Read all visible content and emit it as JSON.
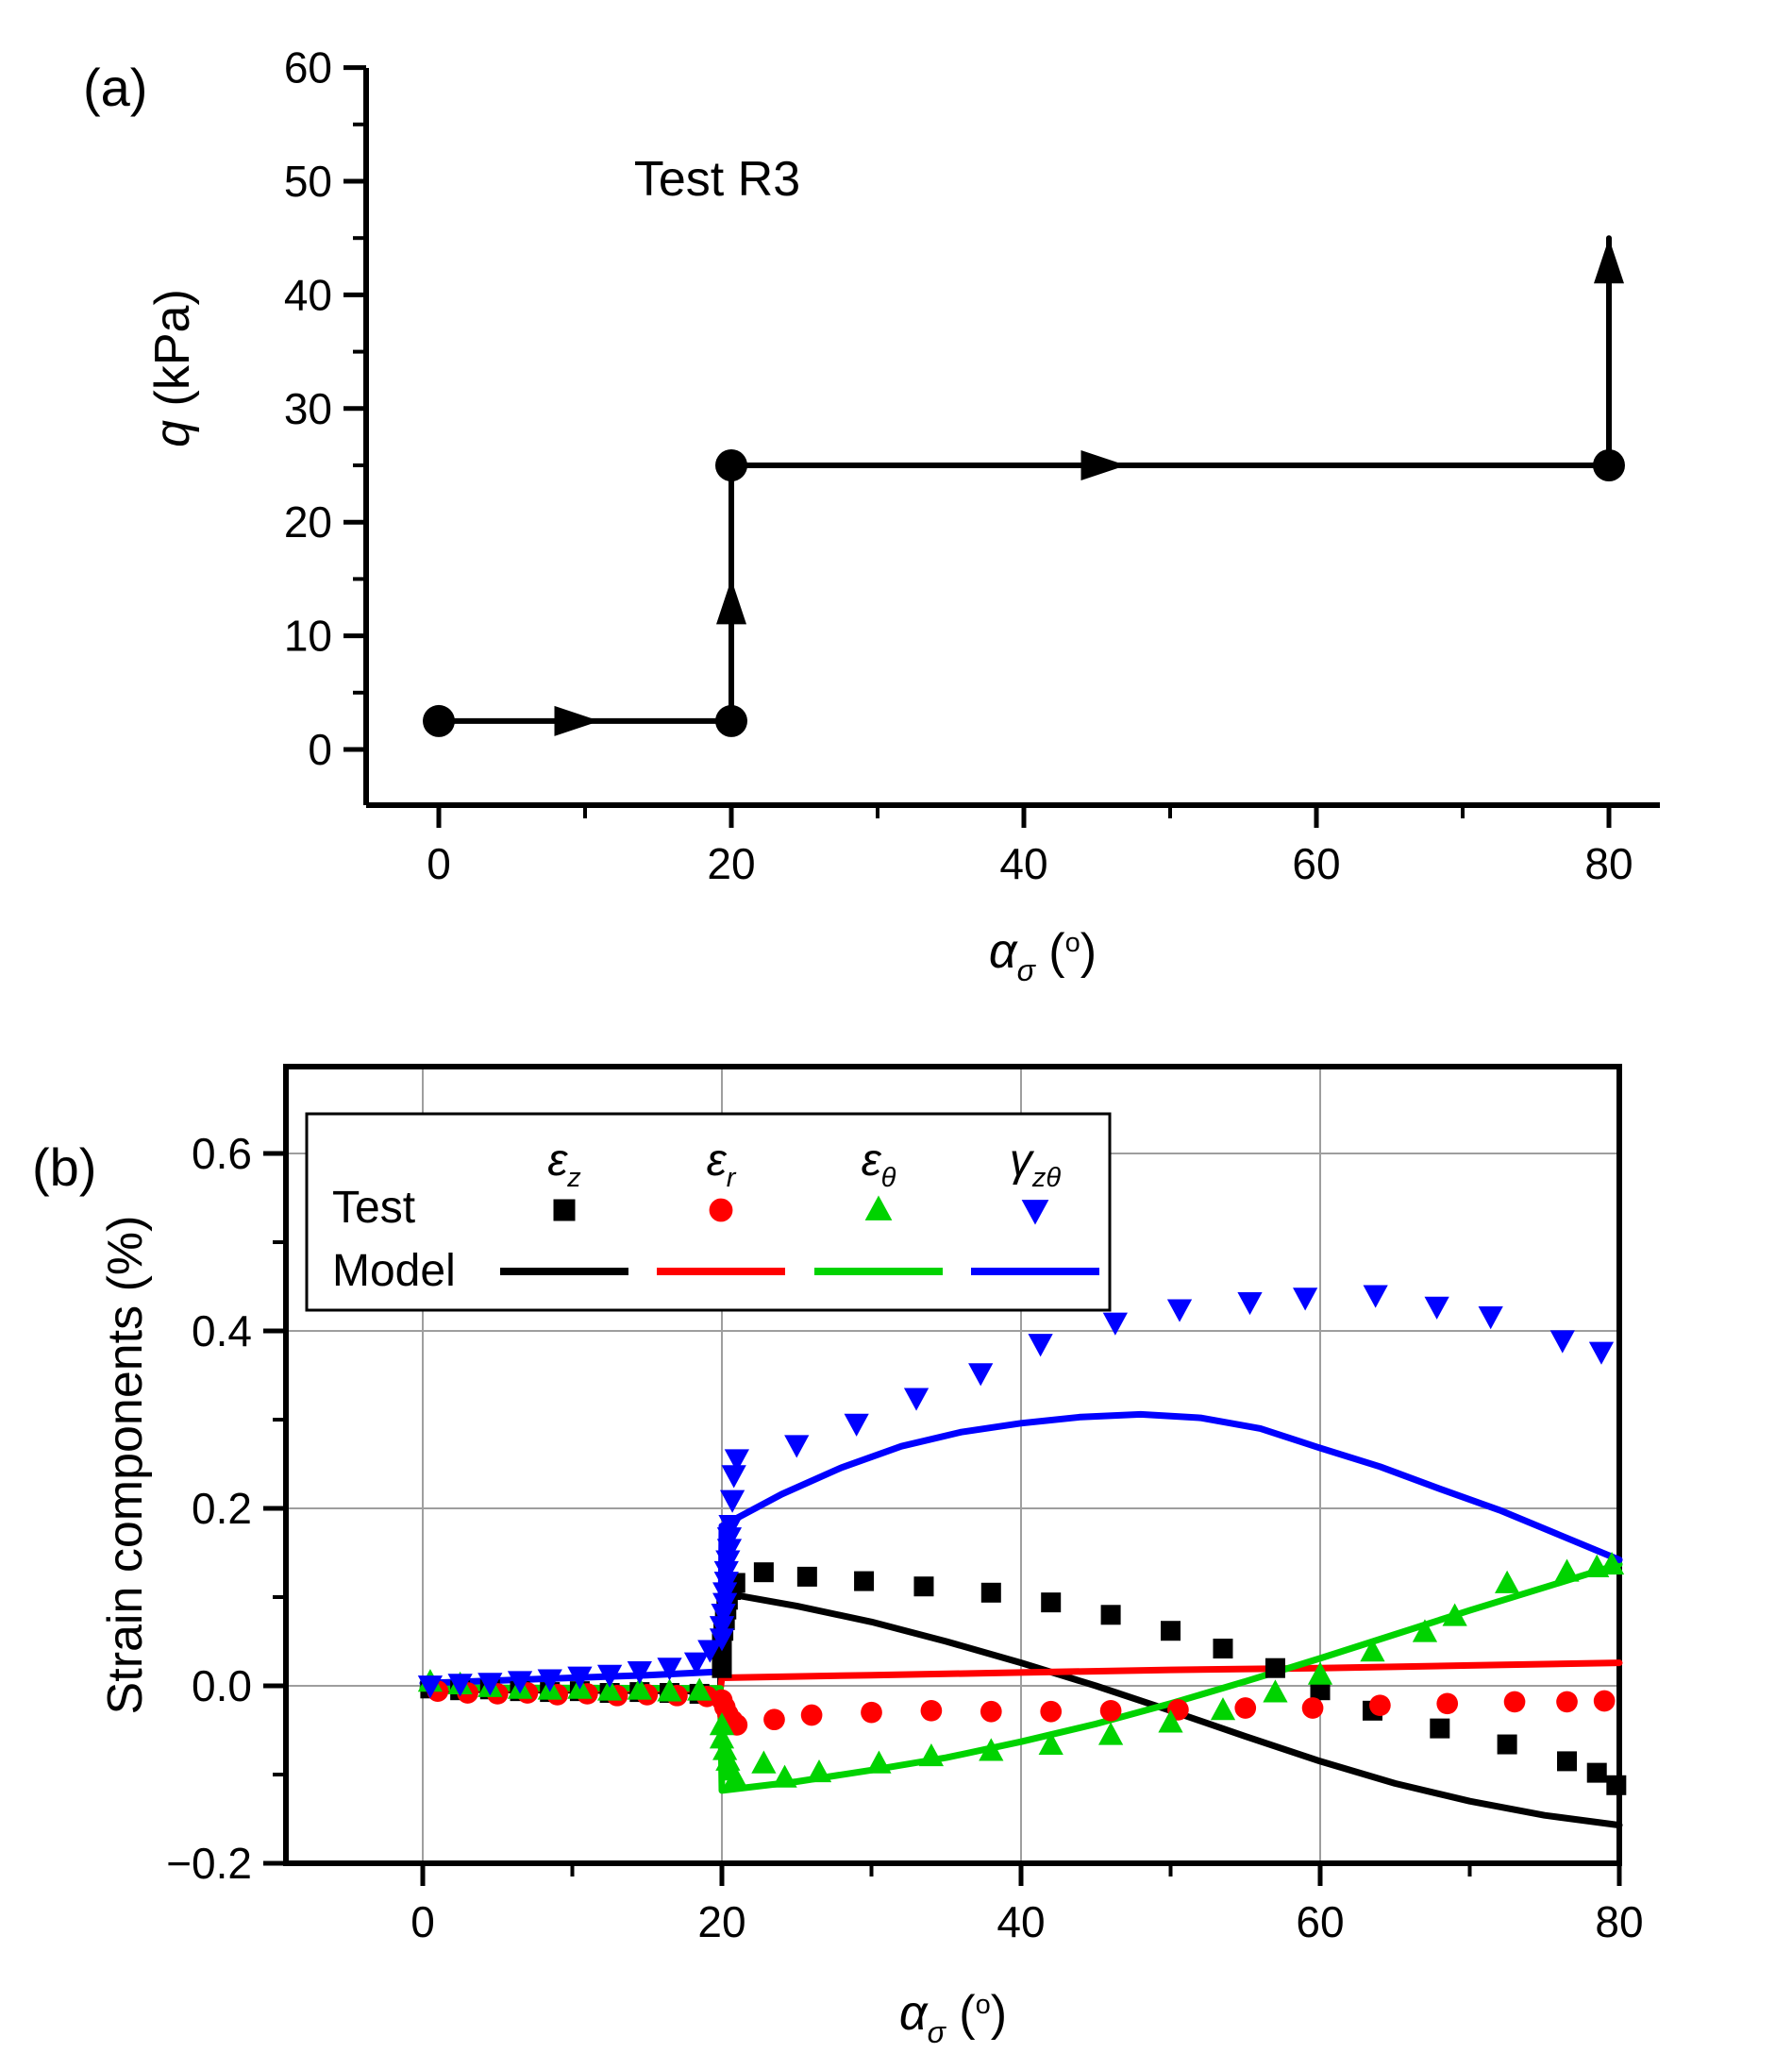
{
  "figure_bg": "#ffffff",
  "axis_color": "#000000",
  "grid_color": "#9e9e9e",
  "chart_data": [
    {
      "panel": "a",
      "panel_label": "(a)",
      "type": "line",
      "title": "Test R3",
      "xlabel": {
        "text": "α_σ (°)",
        "base": "α",
        "sub": "σ",
        "deg": true
      },
      "ylabel": {
        "text": "q (kPa)",
        "italic": "q",
        "rest": " (kPa)"
      },
      "xlim": [
        -5,
        83.5
      ],
      "ylim": [
        -4.9,
        60
      ],
      "xticks": [
        0,
        20,
        40,
        60,
        80
      ],
      "xminor": [
        10,
        30,
        50,
        70
      ],
      "yticks": [
        0,
        10,
        20,
        30,
        40,
        50,
        60
      ],
      "yminor": [
        5,
        15,
        25,
        35,
        45,
        55
      ],
      "grid": false,
      "color": "#000000",
      "stress_path": {
        "vertices": [
          [
            0,
            2.5
          ],
          [
            20,
            2.5
          ],
          [
            20,
            25
          ],
          [
            80,
            25
          ],
          [
            80,
            45
          ]
        ],
        "points": [
          [
            0,
            2.5
          ],
          [
            20,
            2.5
          ],
          [
            20,
            25
          ],
          [
            80,
            25
          ]
        ],
        "arrows": [
          {
            "tip": [
              11,
              2.5
            ],
            "dir": "right"
          },
          {
            "tip": [
              20,
              15
            ],
            "dir": "up"
          },
          {
            "tip": [
              47,
              25
            ],
            "dir": "right"
          },
          {
            "tip": [
              80,
              45
            ],
            "dir": "up"
          }
        ]
      }
    },
    {
      "panel": "b",
      "panel_label": "(b)",
      "type": "scatter-line",
      "xlabel": {
        "text": "α_σ (°)",
        "base": "α",
        "sub": "σ",
        "deg": true
      },
      "ylabel": {
        "text": "Strain components (%)"
      },
      "xlim": [
        -9.2,
        80
      ],
      "ylim": [
        -0.2,
        0.698
      ],
      "xticks": [
        0,
        20,
        40,
        60,
        80
      ],
      "xminor": [
        10,
        30,
        50,
        70
      ],
      "yticks": [
        -0.2,
        0,
        0.2,
        0.4,
        0.6
      ],
      "ytick_labels": [
        "-0.2",
        "0.0",
        "0.2",
        "0.4",
        "0.6"
      ],
      "yminor": [
        -0.1,
        0.1,
        0.3,
        0.5
      ],
      "grid": true,
      "legend": {
        "row_labels": [
          "Test",
          "Model"
        ]
      },
      "series": [
        {
          "key": "eps-z",
          "name": {
            "text": "ε_z",
            "base": "ε",
            "sub": "z"
          },
          "color": "#000000",
          "marker": "square",
          "test": [
            [
              0.5,
              -0.003
            ],
            [
              2.5,
              -0.005
            ],
            [
              4.5,
              -0.004
            ],
            [
              6.5,
              -0.006
            ],
            [
              8.5,
              -0.007
            ],
            [
              10.5,
              -0.006
            ],
            [
              12.5,
              -0.008
            ],
            [
              14.5,
              -0.007
            ],
            [
              16.5,
              -0.008
            ],
            [
              18.5,
              -0.009
            ],
            [
              20,
              0.02
            ],
            [
              20,
              0.034
            ],
            [
              20,
              0.048
            ],
            [
              20.1,
              0.062
            ],
            [
              20.2,
              0.074
            ],
            [
              20.3,
              0.086
            ],
            [
              20.4,
              0.097
            ],
            [
              20.6,
              0.108
            ],
            [
              20.9,
              0.116
            ],
            [
              22.8,
              0.128
            ],
            [
              25.7,
              0.123
            ],
            [
              29.5,
              0.118
            ],
            [
              33.5,
              0.112
            ],
            [
              38,
              0.105
            ],
            [
              42,
              0.094
            ],
            [
              46,
              0.08
            ],
            [
              50,
              0.062
            ],
            [
              53.5,
              0.042
            ],
            [
              57,
              0.02
            ],
            [
              60,
              -0.005
            ],
            [
              63.5,
              -0.028
            ],
            [
              68,
              -0.048
            ],
            [
              72.5,
              -0.066
            ],
            [
              76.5,
              -0.085
            ],
            [
              78.5,
              -0.098
            ],
            [
              79.8,
              -0.112
            ]
          ],
          "model": [
            [
              0,
              -0.004
            ],
            [
              19.9,
              -0.006
            ],
            [
              20,
              0.105
            ],
            [
              25,
              0.09
            ],
            [
              30,
              0.072
            ],
            [
              35,
              0.05
            ],
            [
              40,
              0.026
            ],
            [
              45,
              0
            ],
            [
              50,
              -0.028
            ],
            [
              55,
              -0.057
            ],
            [
              60,
              -0.085
            ],
            [
              65,
              -0.11
            ],
            [
              70,
              -0.13
            ],
            [
              75,
              -0.146
            ],
            [
              80,
              -0.157
            ]
          ]
        },
        {
          "key": "eps-r",
          "name": {
            "text": "ε_r",
            "base": "ε",
            "sub": "r"
          },
          "color": "#ff0000",
          "marker": "circle",
          "test": [
            [
              1,
              -0.006
            ],
            [
              3,
              -0.008
            ],
            [
              5,
              -0.009
            ],
            [
              7,
              -0.008
            ],
            [
              9,
              -0.01
            ],
            [
              11,
              -0.009
            ],
            [
              13,
              -0.011
            ],
            [
              15,
              -0.01
            ],
            [
              17,
              -0.011
            ],
            [
              19,
              -0.012
            ],
            [
              20,
              -0.016
            ],
            [
              20.2,
              -0.024
            ],
            [
              20.4,
              -0.032
            ],
            [
              20.7,
              -0.039
            ],
            [
              21,
              -0.044
            ],
            [
              23.5,
              -0.038
            ],
            [
              26,
              -0.033
            ],
            [
              30,
              -0.03
            ],
            [
              34,
              -0.028
            ],
            [
              38,
              -0.029
            ],
            [
              42,
              -0.029
            ],
            [
              46,
              -0.028
            ],
            [
              50.5,
              -0.027
            ],
            [
              55,
              -0.025
            ],
            [
              59.5,
              -0.025
            ],
            [
              64,
              -0.022
            ],
            [
              68.5,
              -0.02
            ],
            [
              73,
              -0.018
            ],
            [
              76.5,
              -0.018
            ],
            [
              79,
              -0.017
            ]
          ],
          "model": [
            [
              0,
              -0.003
            ],
            [
              19.9,
              -0.004
            ],
            [
              20,
              0.009
            ],
            [
              30,
              0.012
            ],
            [
              40,
              0.015
            ],
            [
              50,
              0.018
            ],
            [
              60,
              0.02
            ],
            [
              70,
              0.023
            ],
            [
              80,
              0.026
            ]
          ]
        },
        {
          "key": "eps-theta",
          "name": {
            "text": "ε_θ",
            "base": "ε",
            "sub": "θ"
          },
          "color": "#00d300",
          "marker": "triangle-up",
          "test": [
            [
              0.5,
              0.004
            ],
            [
              2.5,
              0.001
            ],
            [
              4.5,
              -0.002
            ],
            [
              6.5,
              -0.004
            ],
            [
              8.5,
              -0.005
            ],
            [
              10.5,
              -0.004
            ],
            [
              12.5,
              -0.006
            ],
            [
              14.5,
              -0.005
            ],
            [
              16.5,
              -0.007
            ],
            [
              18.5,
              -0.006
            ],
            [
              20,
              -0.045
            ],
            [
              20,
              -0.06
            ],
            [
              20.2,
              -0.073
            ],
            [
              20.4,
              -0.085
            ],
            [
              20.6,
              -0.096
            ],
            [
              20.9,
              -0.105
            ],
            [
              22.8,
              -0.088
            ],
            [
              24.2,
              -0.104
            ],
            [
              26.5,
              -0.098
            ],
            [
              30.5,
              -0.088
            ],
            [
              34,
              -0.08
            ],
            [
              38,
              -0.074
            ],
            [
              42,
              -0.067
            ],
            [
              46,
              -0.056
            ],
            [
              50,
              -0.042
            ],
            [
              53.5,
              -0.028
            ],
            [
              57,
              -0.008
            ],
            [
              60,
              0.012
            ],
            [
              63.5,
              0.038
            ],
            [
              67,
              0.06
            ],
            [
              69,
              0.078
            ],
            [
              72.5,
              0.115
            ],
            [
              76.5,
              0.128
            ],
            [
              78.5,
              0.133
            ],
            [
              79.5,
              0.136
            ]
          ],
          "model": [
            [
              0,
              -0.002
            ],
            [
              19.9,
              -0.003
            ],
            [
              20,
              -0.118
            ],
            [
              25,
              -0.108
            ],
            [
              30,
              -0.095
            ],
            [
              35,
              -0.081
            ],
            [
              40,
              -0.063
            ],
            [
              45,
              -0.043
            ],
            [
              50,
              -0.02
            ],
            [
              55,
              0.005
            ],
            [
              60,
              0.031
            ],
            [
              65,
              0.058
            ],
            [
              70,
              0.085
            ],
            [
              75,
              0.111
            ],
            [
              80,
              0.137
            ]
          ]
        },
        {
          "key": "gamma-ztheta",
          "name": {
            "text": "γ_zθ",
            "base": "γ",
            "sub": "zθ"
          },
          "color": "#0000ff",
          "marker": "triangle-down",
          "test": [
            [
              0.5,
              0.001
            ],
            [
              2.5,
              0.003
            ],
            [
              4.5,
              0.004
            ],
            [
              6.5,
              0.006
            ],
            [
              8.5,
              0.008
            ],
            [
              10.5,
              0.011
            ],
            [
              12.5,
              0.013
            ],
            [
              14.5,
              0.017
            ],
            [
              16.5,
              0.021
            ],
            [
              18.3,
              0.027
            ],
            [
              19.2,
              0.041
            ],
            [
              20,
              0.054
            ],
            [
              20,
              0.068
            ],
            [
              20.1,
              0.082
            ],
            [
              20.2,
              0.094
            ],
            [
              20.2,
              0.106
            ],
            [
              20.3,
              0.118
            ],
            [
              20.3,
              0.13
            ],
            [
              20.4,
              0.142
            ],
            [
              20.5,
              0.155
            ],
            [
              20.5,
              0.168
            ],
            [
              20.6,
              0.182
            ],
            [
              20.7,
              0.21
            ],
            [
              20.8,
              0.238
            ],
            [
              21,
              0.256
            ],
            [
              25,
              0.272
            ],
            [
              29,
              0.296
            ],
            [
              33,
              0.325
            ],
            [
              37.3,
              0.353
            ],
            [
              41.3,
              0.386
            ],
            [
              46.3,
              0.41
            ],
            [
              50.6,
              0.425
            ],
            [
              55.3,
              0.433
            ],
            [
              59,
              0.438
            ],
            [
              63.7,
              0.441
            ],
            [
              67.8,
              0.428
            ],
            [
              71.4,
              0.417
            ],
            [
              76.2,
              0.39
            ],
            [
              78.8,
              0.377
            ]
          ],
          "model": [
            [
              0,
              0.003
            ],
            [
              5,
              0.006
            ],
            [
              10,
              0.009
            ],
            [
              15,
              0.012
            ],
            [
              19.9,
              0.016
            ],
            [
              20,
              0.18
            ],
            [
              24,
              0.216
            ],
            [
              28,
              0.246
            ],
            [
              32,
              0.27
            ],
            [
              36,
              0.286
            ],
            [
              40,
              0.296
            ],
            [
              44,
              0.303
            ],
            [
              48,
              0.306
            ],
            [
              52,
              0.302
            ],
            [
              56,
              0.29
            ],
            [
              60,
              0.268
            ],
            [
              64,
              0.247
            ],
            [
              68,
              0.222
            ],
            [
              72,
              0.198
            ],
            [
              76,
              0.17
            ],
            [
              80,
              0.142
            ]
          ]
        }
      ]
    }
  ]
}
